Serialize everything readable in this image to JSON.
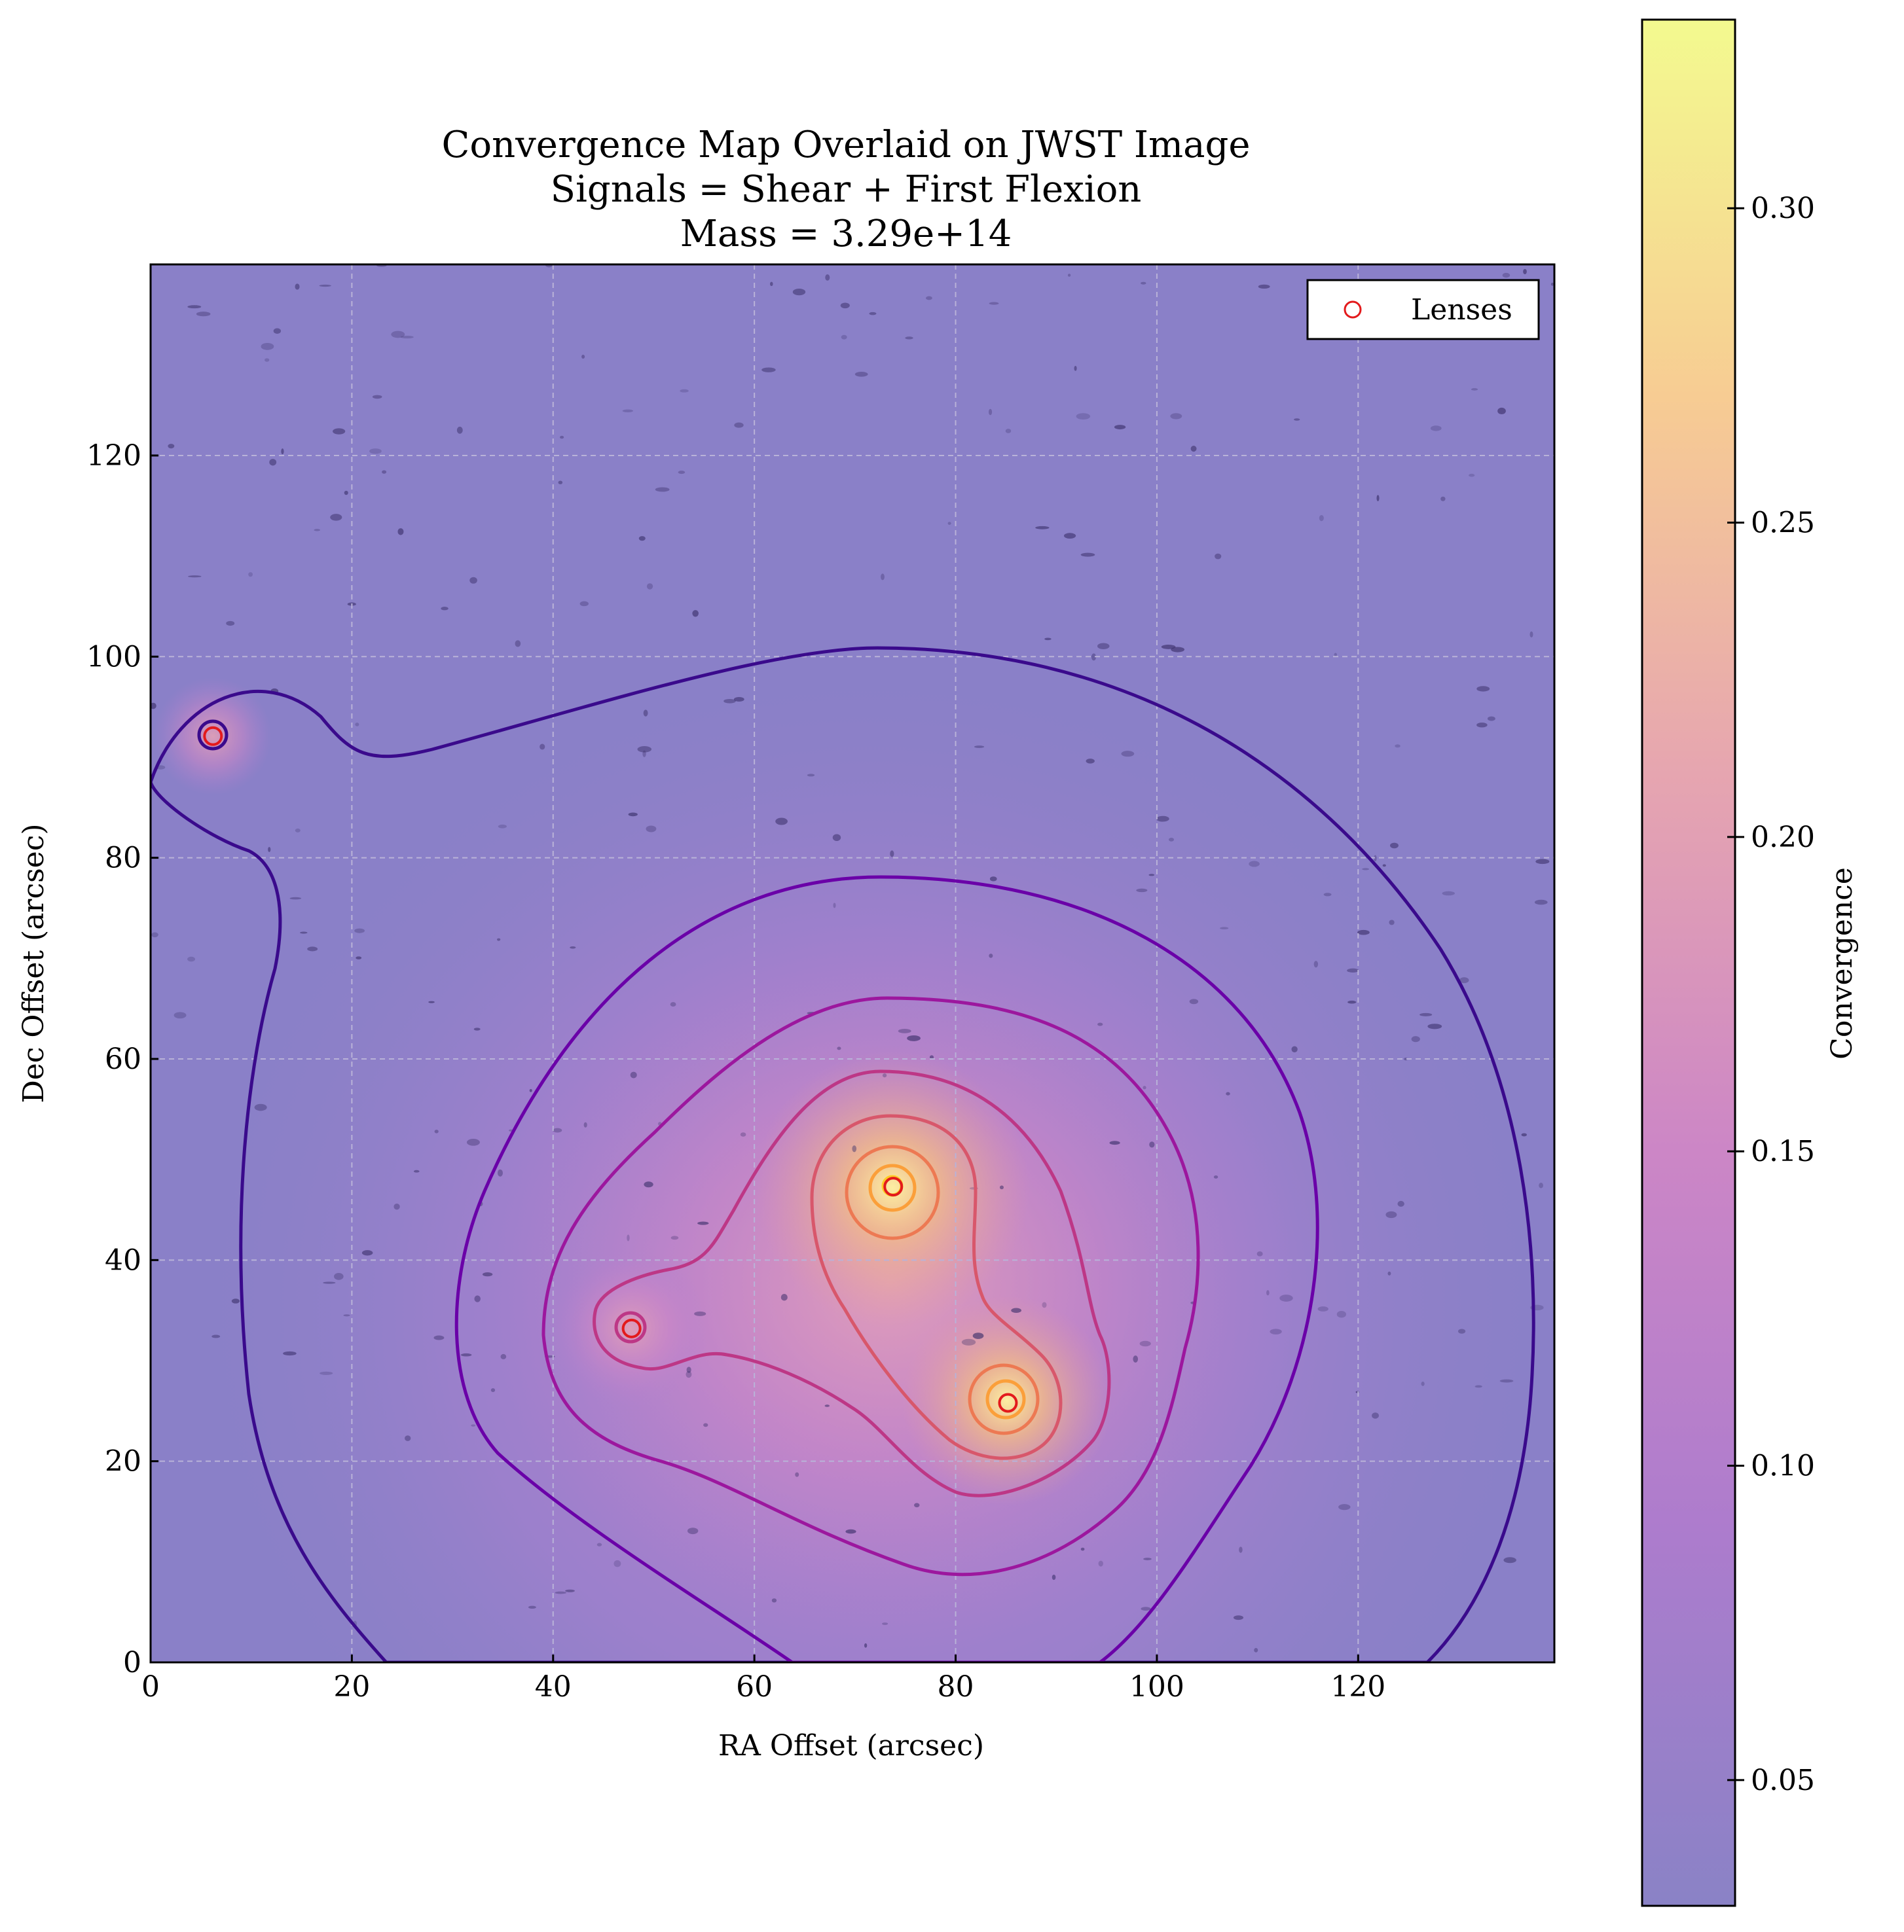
{
  "chart_data": {
    "type": "heatmap",
    "title_lines": [
      "Convergence Map Overlaid on JWST Image",
      "Signals = Shear + First Flexion",
      "Mass = 3.29e+14"
    ],
    "xlabel": "RA Offset (arcsec)",
    "ylabel": "Dec Offset (arcsec)",
    "xlim": [
      0,
      139.5
    ],
    "ylim": [
      0,
      139
    ],
    "xticks": [
      0,
      20,
      40,
      60,
      80,
      100,
      120
    ],
    "yticks": [
      0,
      20,
      40,
      60,
      80,
      100,
      120
    ],
    "grid": true,
    "legend": {
      "location": "top-right",
      "entries": [
        "Lenses"
      ]
    },
    "lenses": [
      {
        "x": 6.2,
        "y": 92.1
      },
      {
        "x": 47.8,
        "y": 33.2
      },
      {
        "x": 73.8,
        "y": 47.3
      },
      {
        "x": 85.2,
        "y": 25.8
      }
    ],
    "colorbar": {
      "label": "Convergence",
      "min": 0.03,
      "max": 0.33,
      "ticks": [
        0.05,
        0.1,
        0.15,
        0.2,
        0.25,
        0.3
      ],
      "tick_labels": [
        "0.05",
        "0.10",
        "0.15",
        "0.20",
        "0.25",
        "0.30"
      ],
      "colormap": "plasma",
      "alpha": 0.5
    },
    "contour_colors": [
      "#3a0a8c",
      "#6a00a8",
      "#9c179e",
      "#bd3786",
      "#d8576b",
      "#ed7953",
      "#fb9f3a",
      "#fdca26"
    ],
    "lens_marker_color": "#e31a1c"
  }
}
